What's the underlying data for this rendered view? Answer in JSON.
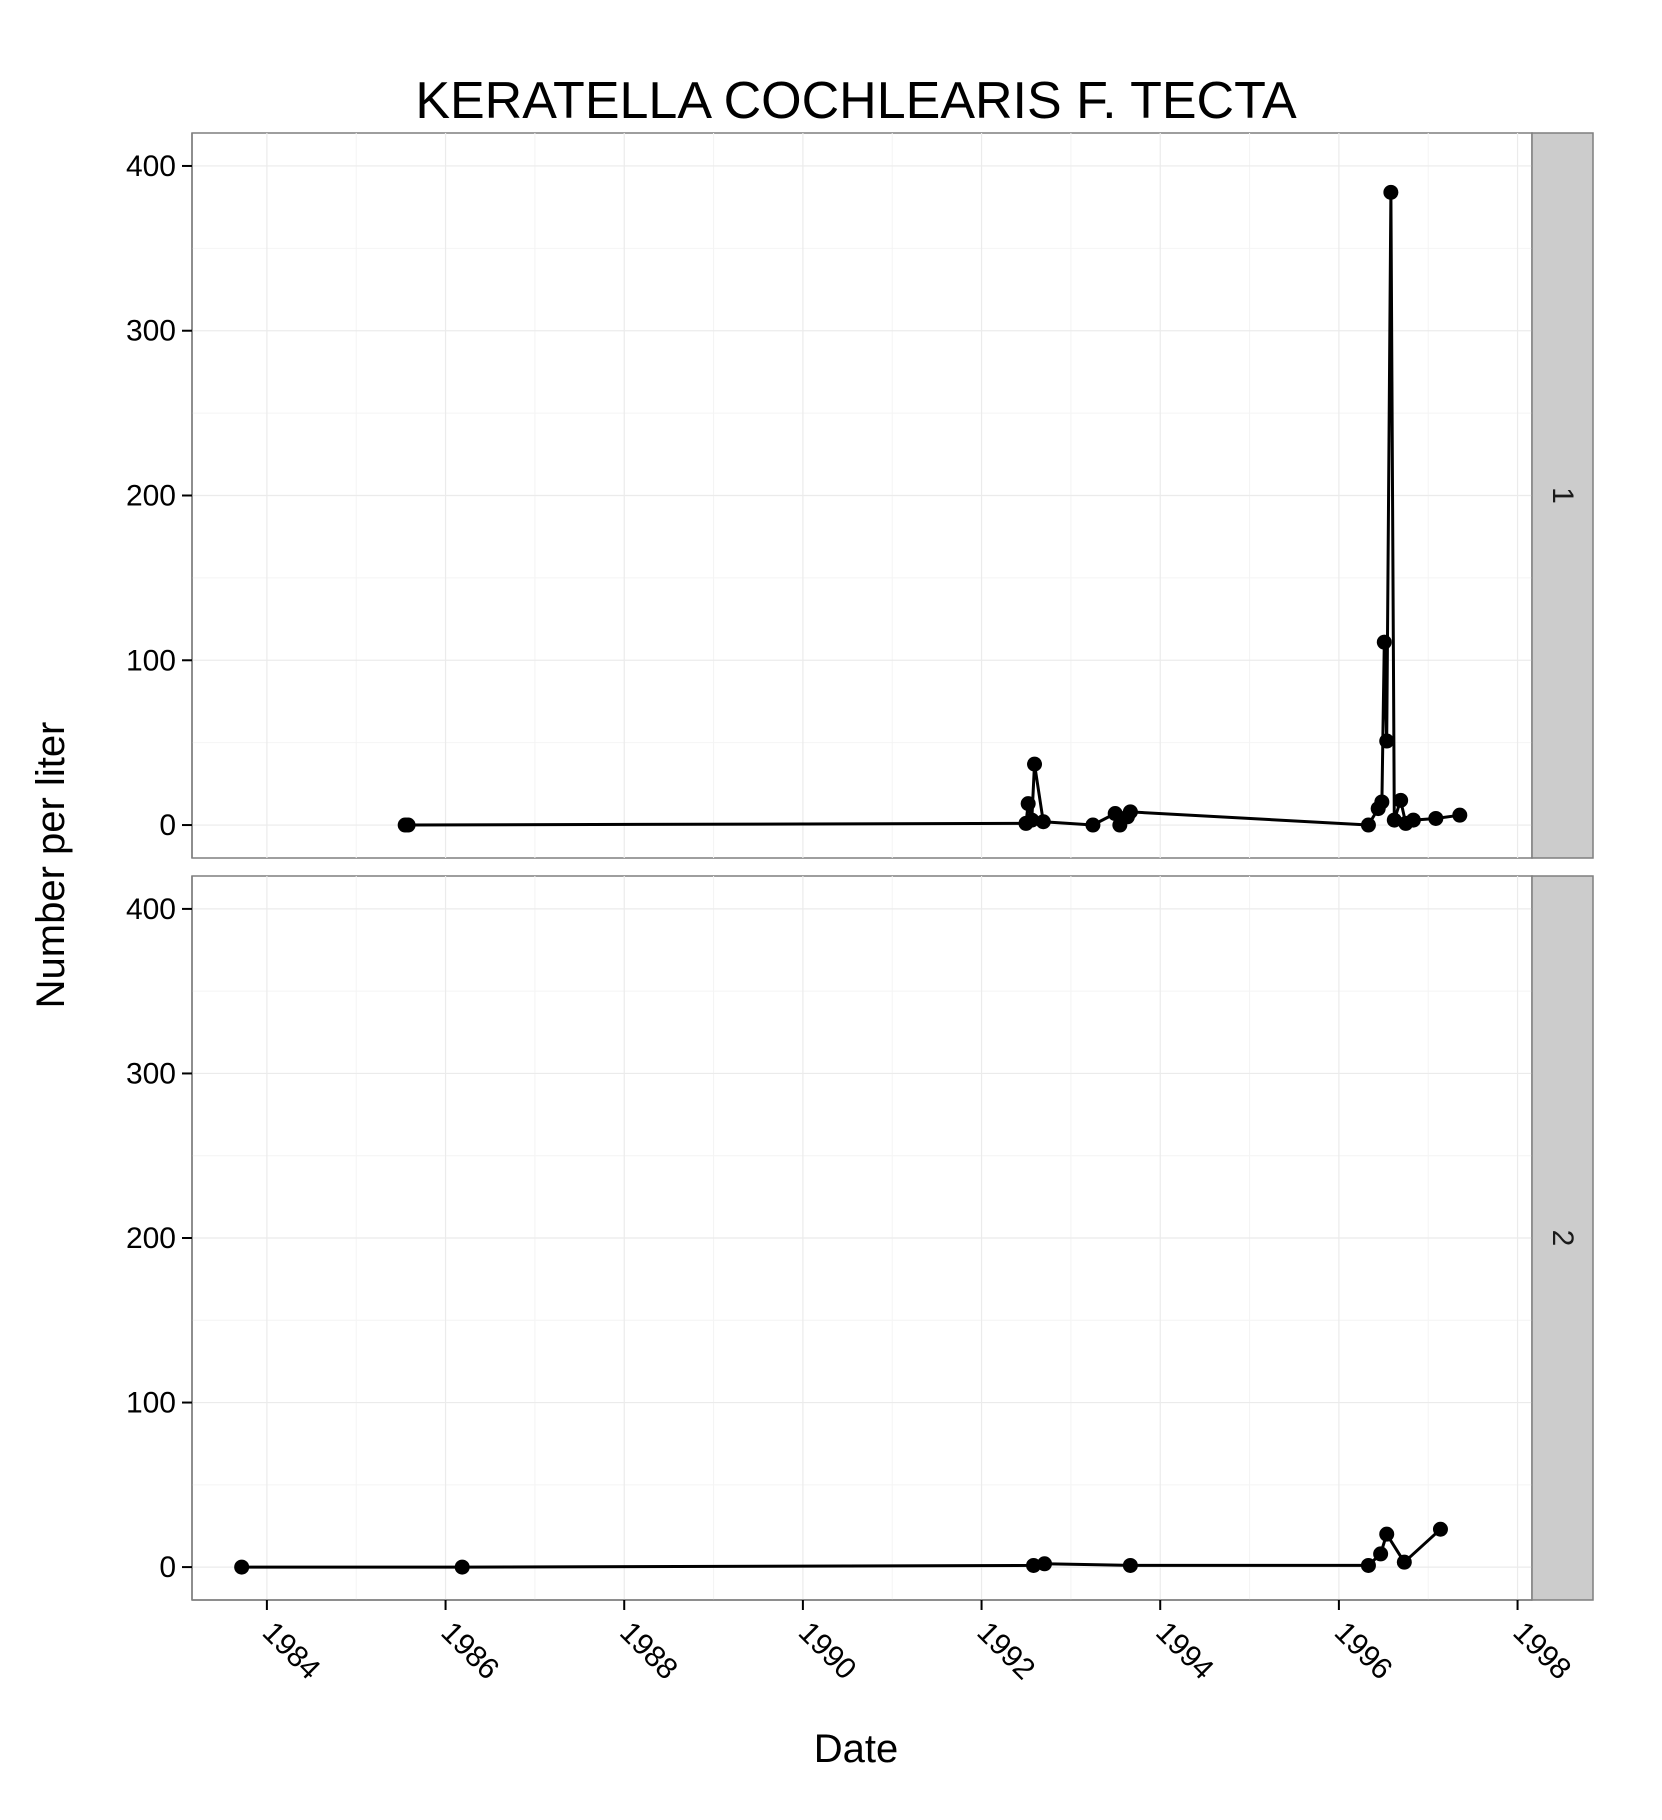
{
  "chart_data": {
    "type": "line",
    "title": "KERATELLA COCHLEARIS F. TECTA",
    "xlabel": "Date",
    "ylabel": "Number per liter",
    "xlim": [
      "1983-03-01",
      "1998-03-01"
    ],
    "ylim": [
      -20,
      420
    ],
    "x_ticks": [
      1984,
      1986,
      1988,
      1990,
      1992,
      1994,
      1996,
      1998
    ],
    "y_ticks": [
      0,
      100,
      200,
      300,
      400
    ],
    "grid": true,
    "markers": true,
    "facets": [
      {
        "label": "1",
        "points": [
          [
            "1985-07-20",
            0
          ],
          [
            "1985-08-01",
            0
          ],
          [
            "1992-07-01",
            1
          ],
          [
            "1992-07-10",
            13
          ],
          [
            "1992-07-25",
            3
          ],
          [
            "1992-08-05",
            37
          ],
          [
            "1992-09-10",
            2
          ],
          [
            "1993-04-01",
            0
          ],
          [
            "1993-07-01",
            7
          ],
          [
            "1993-07-20",
            0
          ],
          [
            "1993-08-20",
            5
          ],
          [
            "1993-09-01",
            8
          ],
          [
            "1996-05-01",
            0
          ],
          [
            "1996-06-10",
            10
          ],
          [
            "1996-06-25",
            14
          ],
          [
            "1996-07-05",
            111
          ],
          [
            "1996-07-15",
            51
          ],
          [
            "1996-08-01",
            384
          ],
          [
            "1996-08-15",
            3
          ],
          [
            "1996-09-10",
            15
          ],
          [
            "1996-10-01",
            1
          ],
          [
            "1996-11-01",
            3
          ],
          [
            "1997-02-01",
            4
          ],
          [
            "1997-05-10",
            6
          ]
        ]
      },
      {
        "label": "2",
        "points": [
          [
            "1983-09-20",
            0
          ],
          [
            "1986-03-10",
            0
          ],
          [
            "1992-08-01",
            1
          ],
          [
            "1992-09-15",
            2
          ],
          [
            "1993-09-01",
            1
          ],
          [
            "1996-05-01",
            1
          ],
          [
            "1996-06-20",
            8
          ],
          [
            "1996-07-15",
            20
          ],
          [
            "1996-09-25",
            3
          ],
          [
            "1997-02-20",
            23
          ]
        ]
      }
    ]
  }
}
